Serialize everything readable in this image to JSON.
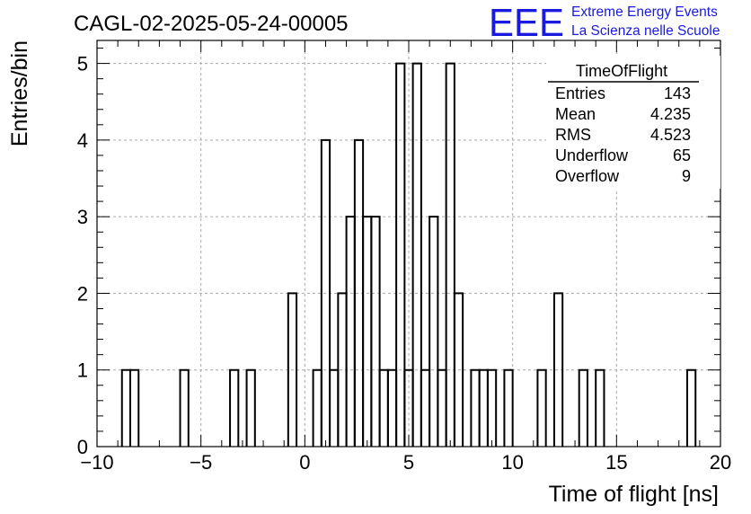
{
  "chart_data": {
    "type": "bar",
    "title": "CAGL-02-2025-05-24-00005",
    "xlabel": "Time of flight [ns]",
    "ylabel": "Entries/bin",
    "xlim": [
      -10,
      20
    ],
    "ylim": [
      0,
      5.3
    ],
    "bin_width": 0.4,
    "grid": true,
    "bins_x": [
      -8.8,
      -8.4,
      -6.0,
      -3.6,
      -2.8,
      -0.8,
      0.4,
      0.8,
      1.2,
      1.6,
      2.0,
      2.4,
      2.8,
      3.2,
      3.6,
      4.0,
      4.4,
      4.8,
      5.2,
      5.6,
      6.0,
      6.4,
      6.8,
      7.2,
      8.0,
      8.4,
      8.8,
      9.6,
      11.2,
      12.0,
      13.2,
      14.0,
      18.4
    ],
    "bins_y": [
      1,
      1,
      1,
      1,
      1,
      2,
      1,
      4,
      1,
      2,
      3,
      4,
      3,
      3,
      1,
      1,
      5,
      1,
      5,
      1,
      3,
      1,
      5,
      2,
      1,
      1,
      1,
      1,
      1,
      2,
      1,
      1,
      1
    ],
    "xticks": [
      "−10",
      "−5",
      "0",
      "5",
      "10",
      "15",
      "20"
    ],
    "yticks": [
      "0",
      "1",
      "2",
      "3",
      "4",
      "5"
    ],
    "stats": {
      "name": "TimeOfFlight",
      "rows": [
        {
          "label": "Entries",
          "value": "143"
        },
        {
          "label": "Mean",
          "value": "4.235"
        },
        {
          "label": "RMS",
          "value": "4.523"
        },
        {
          "label": "Underflow",
          "value": "65"
        },
        {
          "label": "Overflow",
          "value": "9"
        }
      ]
    },
    "logo": {
      "mark": "EEE",
      "line1": "Extreme Energy Events",
      "line2": "La Scienza nelle Scuole",
      "color": "#1a1adf"
    }
  }
}
